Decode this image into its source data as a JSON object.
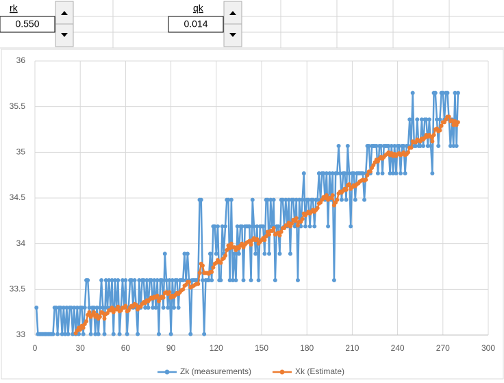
{
  "controls": [
    {
      "label": "rk",
      "value": "0.550"
    },
    {
      "label": "qk",
      "value": "0.014"
    }
  ],
  "chart_data": {
    "type": "line",
    "legend": "bottom",
    "grid": true,
    "xlim": [
      0,
      300
    ],
    "xticks": [
      0,
      30,
      60,
      90,
      120,
      150,
      180,
      210,
      240,
      270,
      300
    ],
    "ylim": [
      33,
      36
    ],
    "yticks": [
      33,
      33.5,
      34,
      34.5,
      35,
      35.5,
      36
    ],
    "x": [
      1,
      2,
      3,
      4,
      5,
      6,
      7,
      8,
      9,
      10,
      11,
      12,
      13,
      14,
      15,
      16,
      17,
      18,
      19,
      20,
      21,
      22,
      23,
      24,
      25,
      26,
      27,
      28,
      29,
      30,
      31,
      32,
      33,
      34,
      35,
      36,
      37,
      38,
      39,
      40,
      41,
      42,
      43,
      44,
      45,
      46,
      47,
      48,
      49,
      50,
      51,
      52,
      53,
      54,
      55,
      56,
      57,
      58,
      59,
      60,
      61,
      62,
      63,
      64,
      65,
      66,
      67,
      68,
      69,
      70,
      71,
      72,
      73,
      74,
      75,
      76,
      77,
      78,
      79,
      80,
      81,
      82,
      83,
      84,
      85,
      86,
      87,
      88,
      89,
      90,
      91,
      92,
      93,
      94,
      95,
      96,
      97,
      98,
      99,
      100,
      101,
      102,
      103,
      104,
      105,
      106,
      107,
      108,
      109,
      110,
      111,
      112,
      113,
      114,
      115,
      116,
      117,
      118,
      119,
      120,
      121,
      122,
      123,
      124,
      125,
      126,
      127,
      128,
      129,
      130,
      131,
      132,
      133,
      134,
      135,
      136,
      137,
      138,
      139,
      140,
      141,
      142,
      143,
      144,
      145,
      146,
      147,
      148,
      149,
      150,
      151,
      152,
      153,
      154,
      155,
      156,
      157,
      158,
      159,
      160,
      161,
      162,
      163,
      164,
      165,
      166,
      167,
      168,
      169,
      170,
      171,
      172,
      173,
      174,
      175,
      176,
      177,
      178,
      179,
      180,
      181,
      182,
      183,
      184,
      185,
      186,
      187,
      188,
      189,
      190,
      191,
      192,
      193,
      194,
      195,
      196,
      197,
      198,
      199,
      200,
      201,
      202,
      203,
      204,
      205,
      206,
      207,
      208,
      209,
      210,
      211,
      212,
      213,
      214,
      215,
      216,
      217,
      218,
      219,
      220,
      221,
      222,
      223,
      224,
      225,
      226,
      227,
      228,
      229,
      230,
      231,
      232,
      233,
      234,
      235,
      236,
      237,
      238,
      239,
      240,
      241,
      242,
      243,
      244,
      245,
      246,
      247,
      248,
      249,
      250,
      251,
      252,
      253,
      254,
      255,
      256,
      257,
      258,
      259,
      260,
      261,
      262,
      263,
      264,
      265,
      266,
      267,
      268,
      269,
      270,
      271,
      272,
      273,
      274,
      275,
      276,
      277,
      278,
      279,
      280
    ],
    "series": [
      {
        "name": "Zk (measurements)",
        "color": "#5b9bd5",
        "values": [
          33.3,
          33.01,
          33.01,
          33.01,
          33.01,
          33.01,
          33.01,
          33.01,
          33.01,
          33.01,
          33.01,
          33.01,
          33.3,
          33.3,
          33.01,
          33.3,
          33.3,
          33.01,
          33.3,
          33.01,
          33.3,
          33.01,
          33.3,
          33.3,
          33.01,
          33.3,
          33.01,
          33.3,
          33.01,
          33.3,
          33.3,
          33.01,
          33.3,
          33.6,
          33.6,
          33.3,
          33.01,
          33.3,
          33.3,
          33.01,
          33.3,
          33.01,
          33.3,
          33.6,
          33.3,
          33.01,
          33.6,
          33.3,
          33.6,
          33.3,
          33.6,
          33.01,
          33.6,
          33.3,
          33.6,
          33.01,
          33.3,
          33.6,
          33.3,
          33.6,
          33.01,
          33.3,
          33.6,
          33.6,
          33.3,
          33.6,
          33.3,
          33.01,
          33.6,
          33.3,
          33.6,
          33.6,
          33.3,
          33.6,
          33.3,
          33.6,
          33.6,
          33.3,
          33.6,
          33.3,
          33.6,
          33.01,
          33.6,
          33.6,
          33.3,
          33.89,
          33.6,
          33.3,
          33.6,
          33.01,
          33.6,
          33.3,
          33.6,
          33.6,
          33.3,
          33.6,
          33.6,
          33.6,
          33.89,
          33.6,
          33.89,
          33.6,
          33.01,
          33.6,
          33.6,
          33.6,
          33.6,
          33.6,
          34.48,
          34.48,
          33.6,
          33.01,
          33.6,
          33.6,
          33.6,
          33.89,
          33.6,
          34.19,
          34.19,
          33.89,
          34.19,
          33.6,
          33.6,
          34.19,
          33.89,
          34.19,
          34.48,
          34.48,
          33.6,
          34.48,
          33.6,
          33.89,
          33.6,
          34.19,
          33.89,
          34.19,
          34.19,
          33.6,
          34.19,
          34.19,
          34.19,
          34.19,
          33.6,
          34.48,
          34.19,
          33.89,
          34.19,
          33.6,
          34.19,
          34.19,
          34.19,
          33.89,
          34.48,
          34.48,
          33.89,
          34.48,
          34.19,
          34.48,
          33.6,
          34.19,
          34.19,
          33.89,
          34.48,
          34.48,
          34.19,
          34.48,
          34.19,
          34.48,
          33.89,
          34.48,
          34.48,
          34.19,
          34.48,
          33.6,
          34.48,
          34.19,
          34.48,
          34.77,
          34.19,
          34.48,
          34.48,
          34.19,
          34.48,
          34.48,
          34.19,
          34.48,
          34.48,
          34.77,
          34.48,
          34.77,
          34.77,
          34.48,
          34.77,
          34.19,
          34.77,
          34.48,
          34.77,
          33.6,
          34.77,
          34.77,
          35.07,
          34.77,
          34.48,
          34.77,
          34.77,
          34.48,
          35.07,
          34.77,
          34.19,
          34.77,
          34.77,
          34.48,
          34.77,
          34.77,
          34.77,
          34.77,
          34.77,
          34.48,
          34.77,
          35.07,
          35.07,
          34.77,
          35.07,
          35.07,
          35.07,
          35.07,
          34.77,
          35.07,
          35.07,
          34.77,
          35.07,
          35.07,
          35.07,
          35.07,
          34.77,
          35.07,
          34.77,
          35.07,
          34.77,
          35.07,
          35.07,
          34.77,
          35.07,
          35.07,
          34.77,
          35.07,
          35.07,
          35.36,
          35.07,
          35.65,
          35.07,
          35.07,
          35.36,
          35.07,
          35.07,
          35.36,
          35.07,
          35.36,
          35.36,
          35.07,
          35.36,
          35.07,
          34.77,
          35.65,
          35.65,
          35.36,
          35.07,
          35.36,
          35.65,
          35.65,
          35.36,
          35.65,
          35.65,
          35.36,
          35.07,
          35.36,
          35.07,
          35.65,
          35.07,
          35.65
        ]
      },
      {
        "name": "Xk (Estimate)",
        "color": "#ed7d31",
        "values": [
          null,
          null,
          null,
          null,
          null,
          null,
          null,
          null,
          null,
          null,
          null,
          null,
          null,
          null,
          null,
          null,
          null,
          null,
          null,
          null,
          null,
          null,
          null,
          null,
          null,
          null,
          33.02,
          33.05,
          33.08,
          33.06,
          33.1,
          33.08,
          33.12,
          33.15,
          33.22,
          33.25,
          33.2,
          33.22,
          33.25,
          33.2,
          33.22,
          33.18,
          33.2,
          33.25,
          33.24,
          33.18,
          33.23,
          33.24,
          33.27,
          33.27,
          33.3,
          33.25,
          33.28,
          33.28,
          33.31,
          33.26,
          33.27,
          33.3,
          33.3,
          33.32,
          33.26,
          33.27,
          33.3,
          33.32,
          33.31,
          33.34,
          33.33,
          33.28,
          33.31,
          33.31,
          33.34,
          33.36,
          33.35,
          33.38,
          33.37,
          33.39,
          33.41,
          33.4,
          33.42,
          33.41,
          33.43,
          33.37,
          33.4,
          33.42,
          33.41,
          33.46,
          33.47,
          33.45,
          33.47,
          33.41,
          33.43,
          33.42,
          33.44,
          33.46,
          33.45,
          33.47,
          33.49,
          33.5,
          33.54,
          33.55,
          33.58,
          33.58,
          33.52,
          33.53,
          33.54,
          33.55,
          33.56,
          33.56,
          33.68,
          33.78,
          33.76,
          33.68,
          33.68,
          33.68,
          33.67,
          33.69,
          33.69,
          33.74,
          33.78,
          33.79,
          33.82,
          33.8,
          33.79,
          33.83,
          33.84,
          33.87,
          33.93,
          33.98,
          33.95,
          34.0,
          33.96,
          33.96,
          33.93,
          33.96,
          33.95,
          33.98,
          34.0,
          33.96,
          33.99,
          34.01,
          34.02,
          34.03,
          33.99,
          34.04,
          34.06,
          34.04,
          34.05,
          34.0,
          34.02,
          34.04,
          34.06,
          34.04,
          34.08,
          34.13,
          34.1,
          34.14,
          34.14,
          34.17,
          34.1,
          34.11,
          34.12,
          34.09,
          34.13,
          34.17,
          34.17,
          34.2,
          34.2,
          34.23,
          34.19,
          34.22,
          34.26,
          34.25,
          34.28,
          34.2,
          34.24,
          34.24,
          34.27,
          34.33,
          34.31,
          34.33,
          34.35,
          34.33,
          34.35,
          34.37,
          34.35,
          34.37,
          34.39,
          34.44,
          34.45,
          34.48,
          34.51,
          34.5,
          34.53,
          34.48,
          34.5,
          34.5,
          34.53,
          34.42,
          34.45,
          34.48,
          34.55,
          34.57,
          34.56,
          34.58,
          34.6,
          34.59,
          34.64,
          34.65,
          34.6,
          34.62,
          34.64,
          34.63,
          34.65,
          34.66,
          34.68,
          34.69,
          34.7,
          34.69,
          34.7,
          34.75,
          34.79,
          34.79,
          34.83,
          34.86,
          34.89,
          34.92,
          34.9,
          34.93,
          34.95,
          34.93,
          34.95,
          34.97,
          34.98,
          35.0,
          34.97,
          34.99,
          34.96,
          34.98,
          34.96,
          34.98,
          34.99,
          34.97,
          34.98,
          35.0,
          34.97,
          34.98,
          35.0,
          35.05,
          35.05,
          35.12,
          35.11,
          35.11,
          35.14,
          35.13,
          35.12,
          35.15,
          35.14,
          35.16,
          35.19,
          35.17,
          35.19,
          35.17,
          35.12,
          35.19,
          35.25,
          35.26,
          35.23,
          35.24,
          35.29,
          35.33,
          35.33,
          35.36,
          35.39,
          35.39,
          35.34,
          35.35,
          35.3,
          35.34,
          35.3,
          35.33
        ]
      }
    ]
  }
}
